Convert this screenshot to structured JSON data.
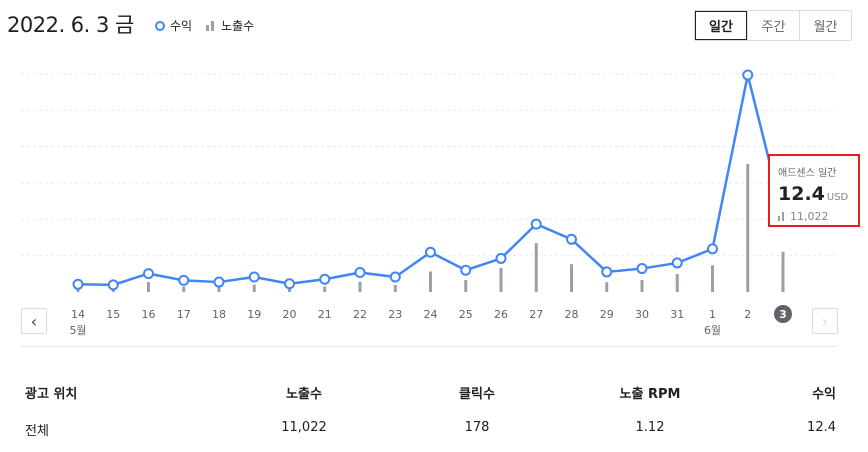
{
  "header": {
    "date": "2022. 6. 3 금",
    "legend": {
      "revenue": "수익",
      "impressions": "노출수"
    },
    "period_tabs": [
      "일간",
      "주간",
      "월간"
    ],
    "active_tab": "일간"
  },
  "colors": {
    "revenue_line": "#4285f4",
    "impressions_bar": "#9aa0a6",
    "highlight_border": "#e02020",
    "selected_day": "#5f6368"
  },
  "tooltip": {
    "title": "애드센스 일간",
    "value": "12.4",
    "unit": "USD",
    "impressions": "11,022"
  },
  "chart_data": {
    "type": "line",
    "categories": [
      "14",
      "15",
      "16",
      "17",
      "18",
      "19",
      "20",
      "21",
      "22",
      "23",
      "24",
      "25",
      "26",
      "27",
      "28",
      "29",
      "30",
      "31",
      "1",
      "2",
      "3"
    ],
    "month_labels": [
      {
        "index": 0,
        "label": "5월"
      },
      {
        "index": 18,
        "label": "6월"
      }
    ],
    "selected_index": 20,
    "series": [
      {
        "name": "수익",
        "type": "line",
        "values": [
          0.3,
          0.2,
          2.2,
          1.0,
          0.7,
          1.6,
          0.4,
          1.2,
          2.4,
          1.6,
          6.0,
          2.8,
          4.9,
          11.0,
          8.3,
          2.5,
          3.1,
          4.1,
          6.6,
          37.5,
          12.4
        ]
      },
      {
        "name": "노출수",
        "type": "bar",
        "values": [
          1400,
          1200,
          2700,
          1500,
          1300,
          2000,
          1200,
          1500,
          2800,
          1900,
          5600,
          3300,
          6600,
          13400,
          7600,
          2700,
          3300,
          4900,
          7300,
          35000,
          11022
        ]
      }
    ],
    "grid": true,
    "gridline_count": 6
  },
  "navigation": {
    "prev": "‹",
    "next": "›"
  },
  "table": {
    "headers": [
      "광고 위치",
      "노출수",
      "클릭수",
      "노출 RPM",
      "수익"
    ],
    "rows": [
      [
        "전체",
        "11,022",
        "178",
        "1.12",
        "12.4"
      ]
    ]
  }
}
